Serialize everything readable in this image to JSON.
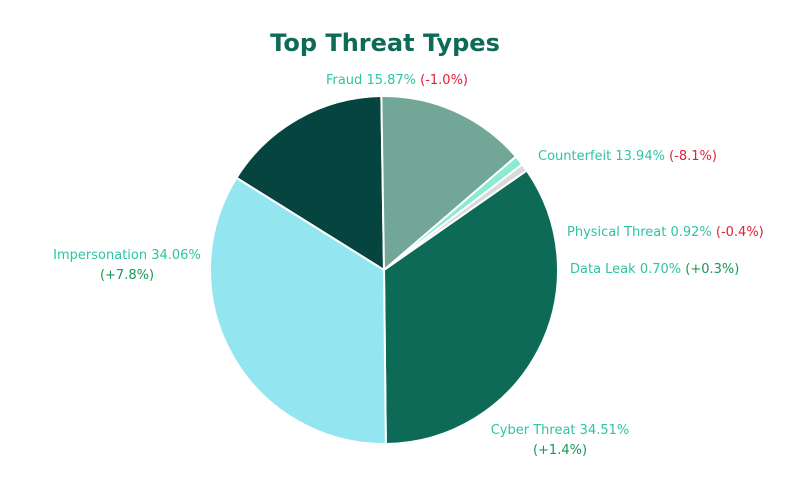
{
  "chart_data": {
    "type": "pie",
    "title": "Top Threat Types",
    "slices": [
      {
        "name": "Fraud",
        "value": 15.87,
        "value_label": "15.87%",
        "change": "(-1.0%)",
        "change_dir": "down",
        "color": "#05443f"
      },
      {
        "name": "Counterfeit",
        "value": 13.94,
        "value_label": "13.94%",
        "change": "(-8.1%)",
        "change_dir": "down",
        "color": "#72a697"
      },
      {
        "name": "Physical Threat",
        "value": 0.92,
        "value_label": "0.92%",
        "change": "(-0.4%)",
        "change_dir": "down",
        "color": "#8bead2"
      },
      {
        "name": "Data Leak",
        "value": 0.7,
        "value_label": "0.70%",
        "change": "(+0.3%)",
        "change_dir": "up",
        "color": "#d9d9d9"
      },
      {
        "name": "Cyber Threat",
        "value": 34.51,
        "value_label": "34.51%",
        "change": "(+1.4%)",
        "change_dir": "up",
        "color": "#0c6a57"
      },
      {
        "name": "Impersonation",
        "value": 34.06,
        "value_label": "34.06%",
        "change": "(+7.8%)",
        "change_dir": "up",
        "color": "#93e5f0"
      }
    ],
    "label_colors": {
      "name": "#2ec4a4",
      "up": "#169858",
      "down": "#e0213a"
    }
  }
}
